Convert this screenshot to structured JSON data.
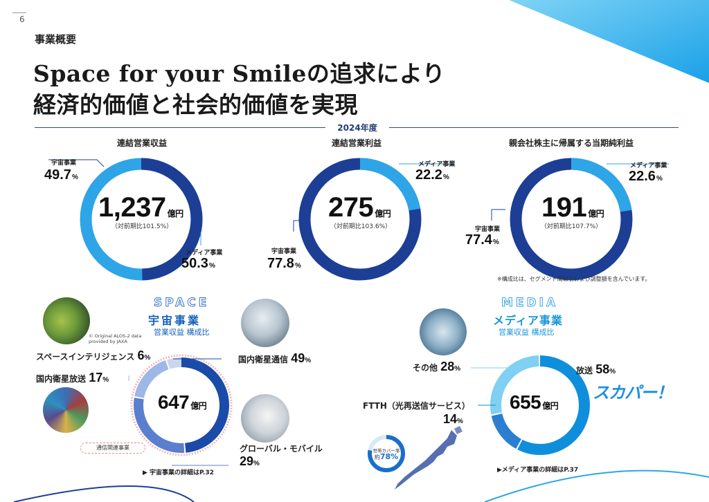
{
  "page": {
    "number": "6",
    "section": "事業概要"
  },
  "headline": {
    "line1": "Space for your Smileの追求により",
    "line2": "経済的価値と社会的価値を実現"
  },
  "year_label": "2024年度",
  "colors": {
    "navy": "#1c3f95",
    "light_blue": "#2ea5e6",
    "space_dark": "#1a4ba8",
    "space_mid": "#5b7fcf",
    "space_light": "#9db7e6",
    "media_blue": "#0f8fdb",
    "media_light": "#7fd0f2"
  },
  "donuts": [
    {
      "title": "連結営業収益",
      "value": "1,237",
      "unit": "億円",
      "yoy": "（対前期比101.5%）",
      "segments": [
        {
          "name": "宇宙事業",
          "pct": "49.7",
          "unit": "%"
        },
        {
          "name": "メディア事業",
          "pct": "50.3",
          "unit": "%"
        }
      ]
    },
    {
      "title": "連結営業利益",
      "value": "275",
      "unit": "億円",
      "yoy": "（対前期比103.6%）",
      "segments": [
        {
          "name": "メディア事業",
          "pct": "22.2",
          "unit": "%"
        },
        {
          "name": "宇宙事業",
          "pct": "77.8",
          "unit": "%"
        }
      ]
    },
    {
      "title": "親会社株主に帰属する当期純利益",
      "value": "191",
      "unit": "億円",
      "yoy": "（対前期比107.7%）",
      "segments": [
        {
          "name": "メディア事業",
          "pct": "22.6",
          "unit": "%"
        },
        {
          "name": "宇宙事業",
          "pct": "77.4",
          "unit": "%"
        }
      ]
    }
  ],
  "note": "※構成比は、セグメント間取引および調整額を含んでいます。",
  "space": {
    "en_title": "SPACE",
    "title": "宇宙事業",
    "subtitle": "営業収益 構成比",
    "total": "647",
    "unit": "億円",
    "segments": [
      {
        "name": "国内衛星通信",
        "pct": "49",
        "unit": "%"
      },
      {
        "name": "グローバル・モバイル",
        "pct": "29",
        "unit": "%"
      },
      {
        "name": "国内衛星放送",
        "pct": "17",
        "unit": "%"
      },
      {
        "name": "スペースインテリジェンス",
        "pct": "6",
        "unit": "%"
      }
    ],
    "credit_line1": "© Original ALOS-2 data",
    "credit_line2": "provided by JAXA",
    "legend": "通信関連事業",
    "detail": "▶ 宇宙事業の詳細はP.32"
  },
  "media": {
    "en_title": "MEDIA",
    "title": "メディア事業",
    "subtitle": "営業収益 構成比",
    "total": "655",
    "unit": "億円",
    "segments": [
      {
        "name": "放送",
        "pct": "58",
        "unit": "%"
      },
      {
        "name": "FTTH（光再送信サービス）",
        "pct": "14",
        "unit": "%"
      },
      {
        "name": "その他",
        "pct": "28",
        "unit": "%"
      }
    ],
    "logo": "スカパー！",
    "coverage_label": "世帯カバー率",
    "coverage_prefix": "約",
    "coverage_value": "78%",
    "detail": "▶メディア事業の詳細はP.37"
  }
}
